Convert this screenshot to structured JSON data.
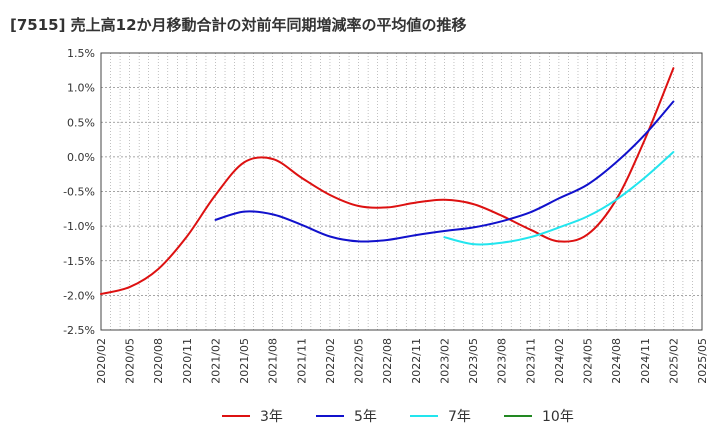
{
  "title": "[7515]  売上高12か月移動合計の対前年同期増減率の平均値の推移",
  "chart_data": {
    "type": "line",
    "title": "[7515]  売上高12か月移動合計の対前年同期増減率の平均値の推移",
    "xlabel": "",
    "ylabel": "",
    "ylim": [
      -2.5,
      1.5
    ],
    "y_ticks": [
      "1.5%",
      "1.0%",
      "0.5%",
      "0.0%",
      "-0.5%",
      "-1.0%",
      "-1.5%",
      "-2.0%",
      "-2.5%"
    ],
    "x_ticks": [
      "2020/02",
      "2020/05",
      "2020/08",
      "2020/11",
      "2021/02",
      "2021/05",
      "2021/08",
      "2021/11",
      "2022/02",
      "2022/05",
      "2022/08",
      "2022/11",
      "2023/02",
      "2023/05",
      "2023/08",
      "2023/11",
      "2024/02",
      "2024/05",
      "2024/08",
      "2024/11",
      "2025/02",
      "2025/05"
    ],
    "grid": true,
    "legend_position": "bottom",
    "series": [
      {
        "name": "3年",
        "color": "#dd1111",
        "points": [
          [
            "2020/02",
            -1.98
          ],
          [
            "2020/05",
            -1.88
          ],
          [
            "2020/08",
            -1.62
          ],
          [
            "2020/11",
            -1.15
          ],
          [
            "2021/02",
            -0.55
          ],
          [
            "2021/05",
            -0.08
          ],
          [
            "2021/08",
            -0.03
          ],
          [
            "2021/11",
            -0.3
          ],
          [
            "2022/02",
            -0.55
          ],
          [
            "2022/05",
            -0.71
          ],
          [
            "2022/08",
            -0.73
          ],
          [
            "2022/11",
            -0.66
          ],
          [
            "2023/02",
            -0.62
          ],
          [
            "2023/05",
            -0.68
          ],
          [
            "2023/08",
            -0.85
          ],
          [
            "2023/11",
            -1.05
          ],
          [
            "2024/02",
            -1.22
          ],
          [
            "2024/05",
            -1.12
          ],
          [
            "2024/08",
            -0.62
          ],
          [
            "2024/11",
            0.25
          ],
          [
            "2025/02",
            1.28
          ]
        ]
      },
      {
        "name": "5年",
        "color": "#1111cc",
        "points": [
          [
            "2021/02",
            -0.91
          ],
          [
            "2021/05",
            -0.79
          ],
          [
            "2021/08",
            -0.83
          ],
          [
            "2021/11",
            -0.98
          ],
          [
            "2022/02",
            -1.15
          ],
          [
            "2022/05",
            -1.22
          ],
          [
            "2022/08",
            -1.2
          ],
          [
            "2022/11",
            -1.13
          ],
          [
            "2023/02",
            -1.07
          ],
          [
            "2023/05",
            -1.02
          ],
          [
            "2023/08",
            -0.93
          ],
          [
            "2023/11",
            -0.8
          ],
          [
            "2024/02",
            -0.6
          ],
          [
            "2024/05",
            -0.4
          ],
          [
            "2024/08",
            -0.08
          ],
          [
            "2024/11",
            0.32
          ],
          [
            "2025/02",
            0.8
          ]
        ]
      },
      {
        "name": "7年",
        "color": "#22e5ee",
        "points": [
          [
            "2023/02",
            -1.16
          ],
          [
            "2023/05",
            -1.26
          ],
          [
            "2023/08",
            -1.24
          ],
          [
            "2023/11",
            -1.16
          ],
          [
            "2024/02",
            -1.02
          ],
          [
            "2024/05",
            -0.86
          ],
          [
            "2024/08",
            -0.62
          ],
          [
            "2024/11",
            -0.3
          ],
          [
            "2025/02",
            0.07
          ]
        ]
      },
      {
        "name": "10年",
        "color": "#228822",
        "points": []
      }
    ]
  }
}
